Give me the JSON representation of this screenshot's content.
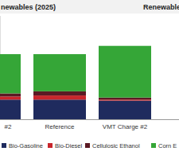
{
  "chart_data": {
    "type": "bar",
    "stacked": true,
    "tick_labels": "x",
    "title": "newables (2025)",
    "subtitle": "Renewables",
    "categories": [
      "#2",
      "Reference",
      "VMT Charge #2"
    ],
    "ylim": [
      0,
      100
    ],
    "yticks": [],
    "series": [
      {
        "name": "Bio-Gasoline",
        "color": "#1f2b5e",
        "values": [
          19,
          19,
          18
        ]
      },
      {
        "name": "Bio-Diesel",
        "color": "#c8262c",
        "values": [
          3,
          4,
          1
        ]
      },
      {
        "name": "Cellulosic Ethanol",
        "color": "#5b1a24",
        "values": [
          3,
          4,
          2
        ]
      },
      {
        "name": "Corn E",
        "color": "#35a637",
        "values": [
          38,
          36,
          50
        ]
      }
    ]
  }
}
